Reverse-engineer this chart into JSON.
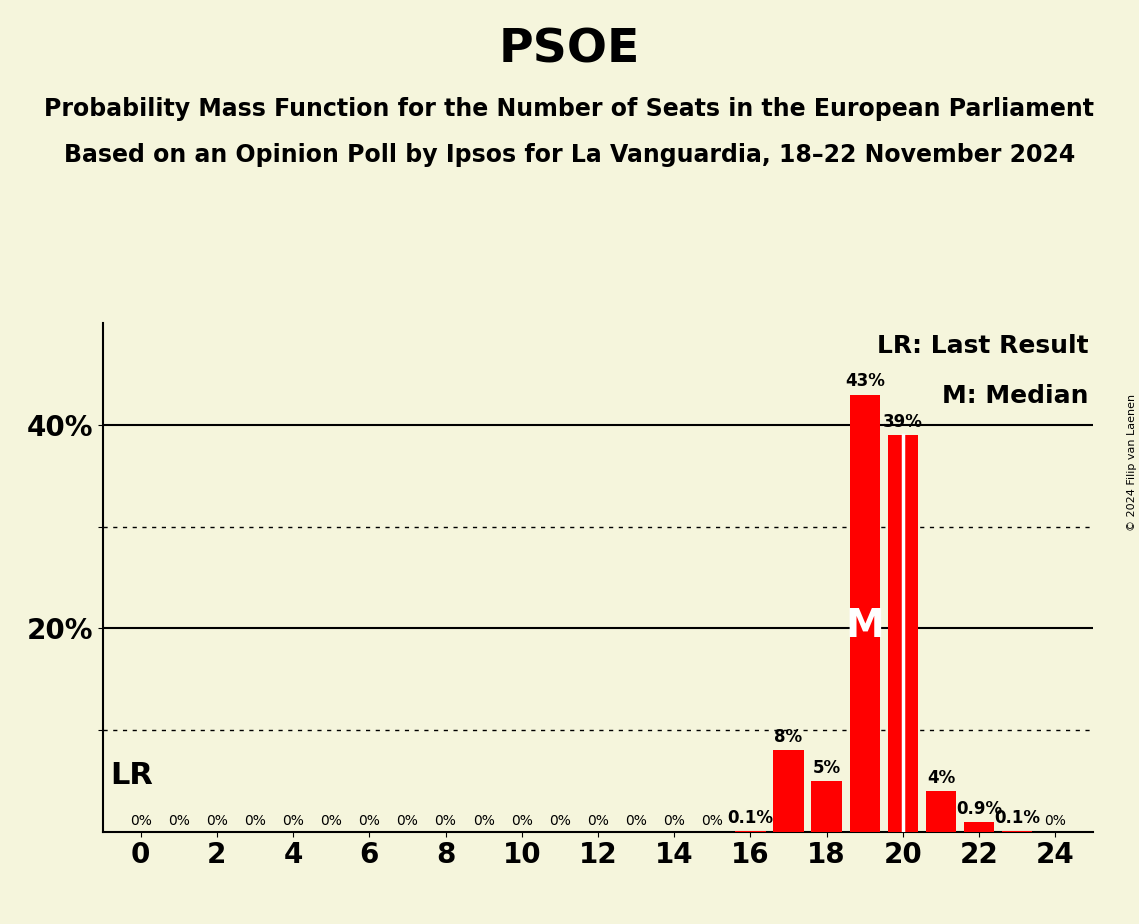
{
  "title": "PSOE",
  "subtitle1": "Probability Mass Function for the Number of Seats in the European Parliament",
  "subtitle2": "Based on an Opinion Poll by Ipsos for La Vanguardia, 18–22 November 2024",
  "copyright": "© 2024 Filip van Laenen",
  "background_color": "#F5F5DC",
  "bar_color": "#FF0000",
  "seats": [
    0,
    1,
    2,
    3,
    4,
    5,
    6,
    7,
    8,
    9,
    10,
    11,
    12,
    13,
    14,
    15,
    16,
    17,
    18,
    19,
    20,
    21,
    22,
    23,
    24
  ],
  "probabilities": [
    0.0,
    0.0,
    0.0,
    0.0,
    0.0,
    0.0,
    0.0,
    0.0,
    0.0,
    0.0,
    0.0,
    0.0,
    0.0,
    0.0,
    0.0,
    0.0,
    0.001,
    0.08,
    0.05,
    0.43,
    0.39,
    0.04,
    0.009,
    0.001,
    0.0
  ],
  "bar_labels": [
    "0%",
    "0%",
    "0%",
    "0%",
    "0%",
    "0%",
    "0%",
    "0%",
    "0%",
    "0%",
    "0%",
    "0%",
    "0%",
    "0%",
    "0%",
    "0%",
    "0.1%",
    "8%",
    "5%",
    "43%",
    "39%",
    "4%",
    "0.9%",
    "0.1%",
    "0%"
  ],
  "last_result_seat": 20,
  "median_seat": 19,
  "ylim": [
    0,
    0.5
  ],
  "solid_yticks": [
    0.2,
    0.4
  ],
  "dotted_yticks": [
    0.1,
    0.3
  ],
  "legend_lr": "LR: Last Result",
  "legend_m": "M: Median",
  "lr_label": "LR",
  "median_label": "M",
  "title_fontsize": 34,
  "subtitle_fontsize": 17,
  "bar_label_fontsize": 12,
  "zero_label_fontsize": 10,
  "axis_tick_fontsize": 20,
  "ytick_label_fontsize": 20,
  "legend_fontsize": 18,
  "lr_fontsize": 22,
  "median_fontsize": 28,
  "copyright_fontsize": 8
}
